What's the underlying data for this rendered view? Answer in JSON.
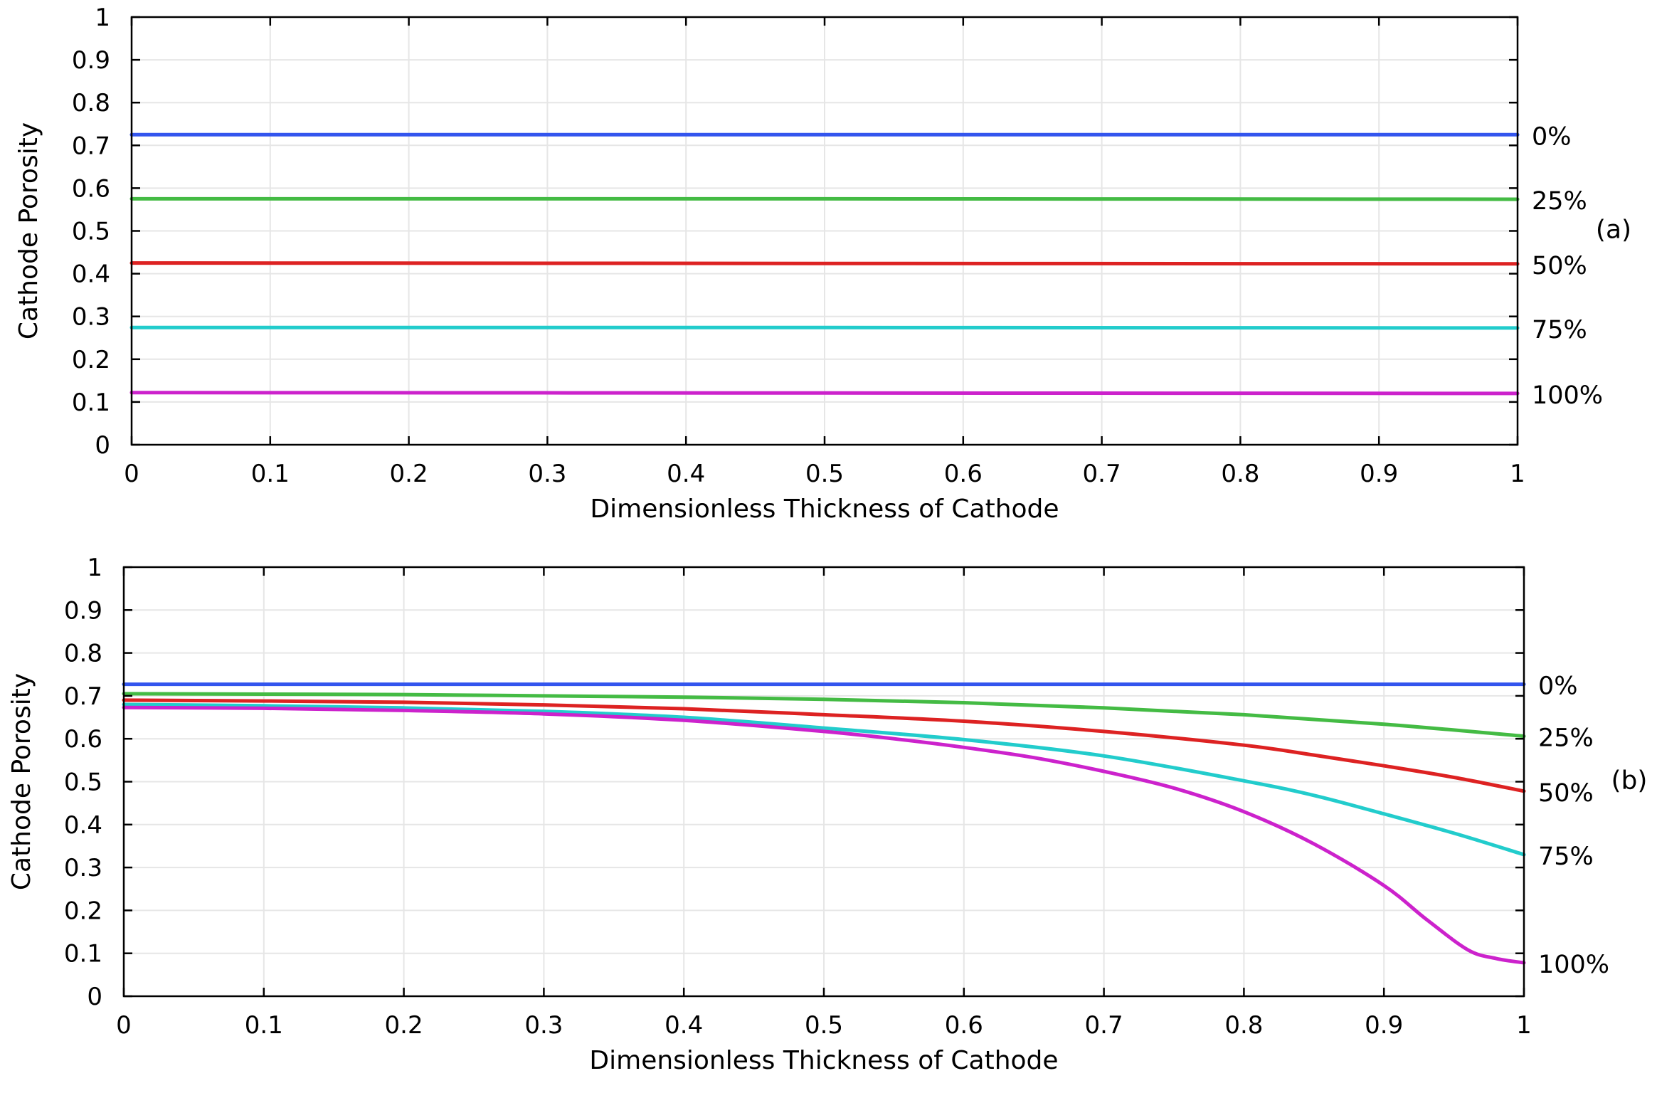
{
  "chart_data": [
    {
      "type": "line",
      "panel_label": "(a)",
      "xlabel": "Dimensionless Thickness of Cathode",
      "ylabel": "Cathode Porosity",
      "xlim": [
        0,
        1
      ],
      "ylim": [
        0,
        1
      ],
      "xticks": [
        "0",
        "0.1",
        "0.2",
        "0.3",
        "0.4",
        "0.5",
        "0.6",
        "0.7",
        "0.8",
        "0.9",
        "1"
      ],
      "yticks": [
        "0",
        "0.1",
        "0.2",
        "0.3",
        "0.4",
        "0.5",
        "0.6",
        "0.7",
        "0.8",
        "0.9",
        "1"
      ],
      "grid": true,
      "series": [
        {
          "name": "0%",
          "color": "#3355ee",
          "x": [
            0,
            0.5,
            1
          ],
          "y": [
            0.725,
            0.725,
            0.725
          ]
        },
        {
          "name": "25%",
          "color": "#44bb44",
          "x": [
            0,
            0.5,
            1
          ],
          "y": [
            0.575,
            0.575,
            0.574
          ]
        },
        {
          "name": "50%",
          "color": "#dd2222",
          "x": [
            0,
            0.5,
            1
          ],
          "y": [
            0.425,
            0.424,
            0.423
          ]
        },
        {
          "name": "75%",
          "color": "#22cccc",
          "x": [
            0,
            0.5,
            1
          ],
          "y": [
            0.274,
            0.274,
            0.273
          ]
        },
        {
          "name": "100%",
          "color": "#cc22cc",
          "x": [
            0,
            0.5,
            1
          ],
          "y": [
            0.122,
            0.121,
            0.12
          ]
        }
      ]
    },
    {
      "type": "line",
      "panel_label": "(b)",
      "xlabel": "Dimensionless Thickness of Cathode",
      "ylabel": "Cathode Porosity",
      "xlim": [
        0,
        1
      ],
      "ylim": [
        0,
        1
      ],
      "xticks": [
        "0",
        "0.1",
        "0.2",
        "0.3",
        "0.4",
        "0.5",
        "0.6",
        "0.7",
        "0.8",
        "0.9",
        "1"
      ],
      "yticks": [
        "0",
        "0.1",
        "0.2",
        "0.3",
        "0.4",
        "0.5",
        "0.6",
        "0.7",
        "0.8",
        "0.9",
        "1"
      ],
      "grid": true,
      "series": [
        {
          "name": "0%",
          "color": "#3355ee",
          "x": [
            0,
            0.5,
            1
          ],
          "y": [
            0.727,
            0.727,
            0.727
          ]
        },
        {
          "name": "25%",
          "color": "#44bb44",
          "x": [
            0,
            0.1,
            0.2,
            0.3,
            0.4,
            0.5,
            0.6,
            0.7,
            0.8,
            0.9,
            1
          ],
          "y": [
            0.705,
            0.704,
            0.703,
            0.7,
            0.697,
            0.692,
            0.684,
            0.672,
            0.656,
            0.634,
            0.606
          ]
        },
        {
          "name": "50%",
          "color": "#dd2222",
          "x": [
            0,
            0.1,
            0.2,
            0.3,
            0.4,
            0.5,
            0.6,
            0.7,
            0.8,
            0.85,
            0.9,
            0.95,
            1
          ],
          "y": [
            0.69,
            0.688,
            0.685,
            0.679,
            0.67,
            0.656,
            0.641,
            0.617,
            0.585,
            0.562,
            0.537,
            0.51,
            0.478
          ]
        },
        {
          "name": "75%",
          "color": "#22cccc",
          "x": [
            0,
            0.1,
            0.2,
            0.3,
            0.4,
            0.5,
            0.6,
            0.7,
            0.8,
            0.85,
            0.9,
            0.95,
            1
          ],
          "y": [
            0.68,
            0.677,
            0.672,
            0.664,
            0.65,
            0.625,
            0.598,
            0.56,
            0.502,
            0.468,
            0.425,
            0.38,
            0.33
          ]
        },
        {
          "name": "100%",
          "color": "#cc22cc",
          "x": [
            0,
            0.1,
            0.2,
            0.3,
            0.4,
            0.5,
            0.55,
            0.6,
            0.65,
            0.7,
            0.75,
            0.8,
            0.85,
            0.9,
            0.93,
            0.96,
            0.98,
            1
          ],
          "y": [
            0.673,
            0.671,
            0.666,
            0.658,
            0.643,
            0.617,
            0.6,
            0.58,
            0.556,
            0.524,
            0.485,
            0.43,
            0.355,
            0.258,
            0.18,
            0.108,
            0.088,
            0.078
          ]
        }
      ]
    }
  ]
}
